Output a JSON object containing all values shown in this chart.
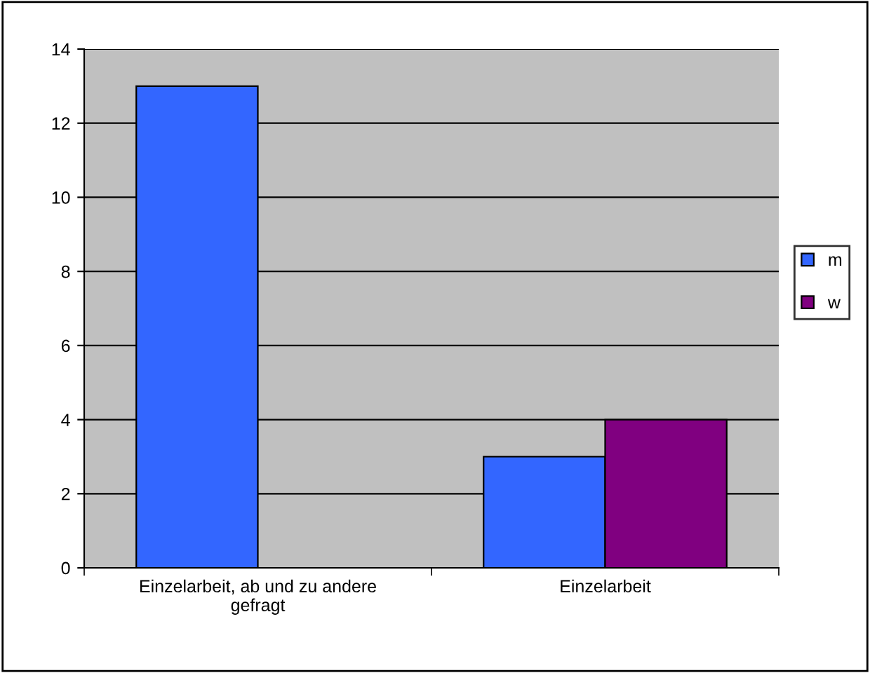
{
  "chart_data": {
    "type": "bar",
    "categories": [
      "Einzelarbeit, ab und zu andere\ngefragt",
      "Einzelarbeit"
    ],
    "series": [
      {
        "name": "m",
        "color": "#3366ff",
        "values": [
          13,
          3
        ]
      },
      {
        "name": "w",
        "color": "#800080",
        "values": [
          null,
          4
        ]
      }
    ],
    "ylim": [
      0,
      14
    ],
    "yticks": [
      0,
      2,
      4,
      6,
      8,
      10,
      12,
      14
    ],
    "grid": "y",
    "legend": "right"
  }
}
